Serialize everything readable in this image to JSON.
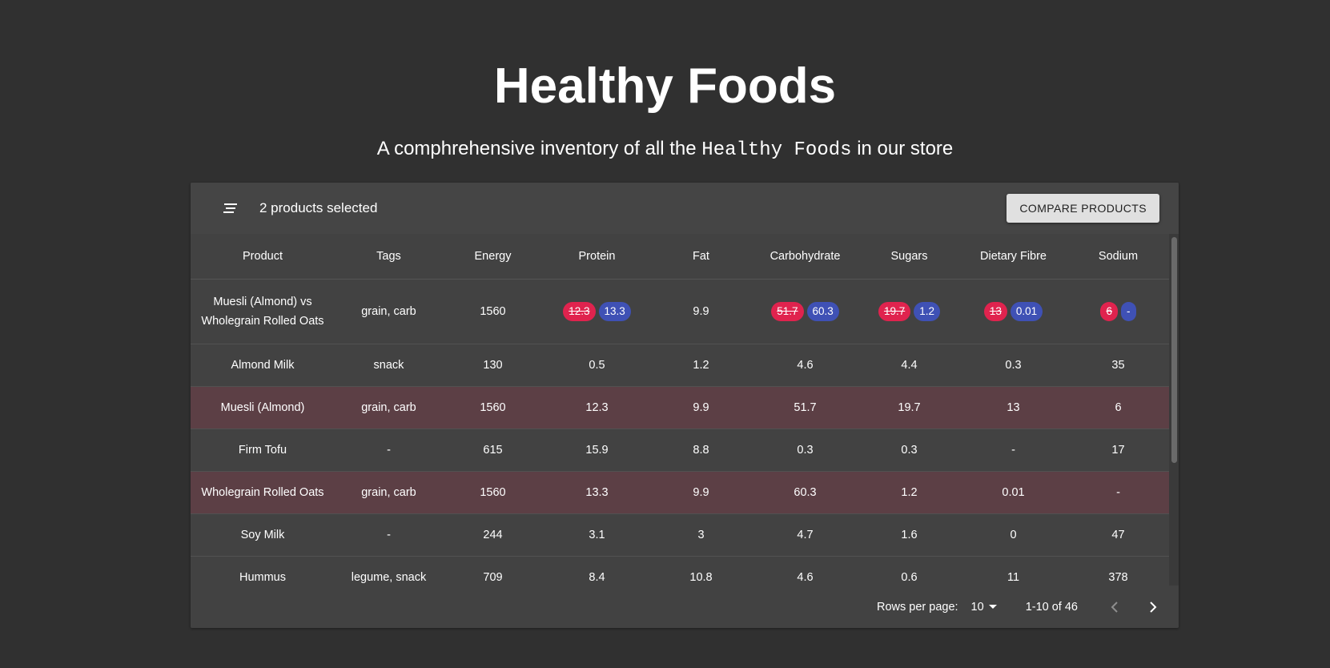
{
  "page": {
    "title": "Healthy Foods",
    "subtitle_before": "A comphrehensive inventory of all the",
    "subtitle_code": "Healthy Foods",
    "subtitle_after": "in our store"
  },
  "toolbar": {
    "selected_text": "2 products selected",
    "compare_label": "COMPARE PRODUCTS",
    "filter_icon": "filter-list-icon"
  },
  "table": {
    "columns": [
      "Product",
      "Tags",
      "Energy",
      "Protein",
      "Fat",
      "Carbohydrate",
      "Sugars",
      "Dietary Fibre",
      "Sodium"
    ],
    "compare_row": {
      "product_line1": "Muesli (Almond) vs",
      "product_line2": "Wholegrain Rolled Oats",
      "tags": "grain, carb",
      "energy": "1560",
      "protein": {
        "old": "12.3",
        "new": "13.3"
      },
      "fat": "9.9",
      "carbohydrate": {
        "old": "51.7",
        "new": "60.3"
      },
      "sugars": {
        "old": "19.7",
        "new": "1.2"
      },
      "fibre": {
        "old": "13",
        "new": "0.01"
      },
      "sodium": {
        "old": "6",
        "new": "-"
      }
    },
    "rows": [
      {
        "cells": [
          "Almond Milk",
          "snack",
          "130",
          "0.5",
          "1.2",
          "4.6",
          "4.4",
          "0.3",
          "35"
        ],
        "selected": false
      },
      {
        "cells": [
          "Muesli (Almond)",
          "grain, carb",
          "1560",
          "12.3",
          "9.9",
          "51.7",
          "19.7",
          "13",
          "6"
        ],
        "selected": true
      },
      {
        "cells": [
          "Firm Tofu",
          "-",
          "615",
          "15.9",
          "8.8",
          "0.3",
          "0.3",
          "-",
          "17"
        ],
        "selected": false
      },
      {
        "cells": [
          "Wholegrain Rolled Oats",
          "grain, carb",
          "1560",
          "13.3",
          "9.9",
          "60.3",
          "1.2",
          "0.01",
          "-"
        ],
        "selected": true
      },
      {
        "cells": [
          "Soy Milk",
          "-",
          "244",
          "3.1",
          "3",
          "4.7",
          "1.6",
          "0",
          "47"
        ],
        "selected": false
      },
      {
        "cells": [
          "Hummus",
          "legume, snack",
          "709",
          "8.4",
          "10.8",
          "4.6",
          "0.6",
          "11",
          "378"
        ],
        "selected": false
      }
    ]
  },
  "pagination": {
    "rows_per_page_label": "Rows per page:",
    "rows_per_page_value": "10",
    "range": "1-10 of 46",
    "prev_icon": "chevron-left-icon",
    "next_icon": "chevron-right-icon"
  },
  "colors": {
    "background": "#303030",
    "panel": "#424242",
    "selected_row": "#5c3f45",
    "chip_old": "#e0234e",
    "chip_new": "#3f51b5"
  }
}
